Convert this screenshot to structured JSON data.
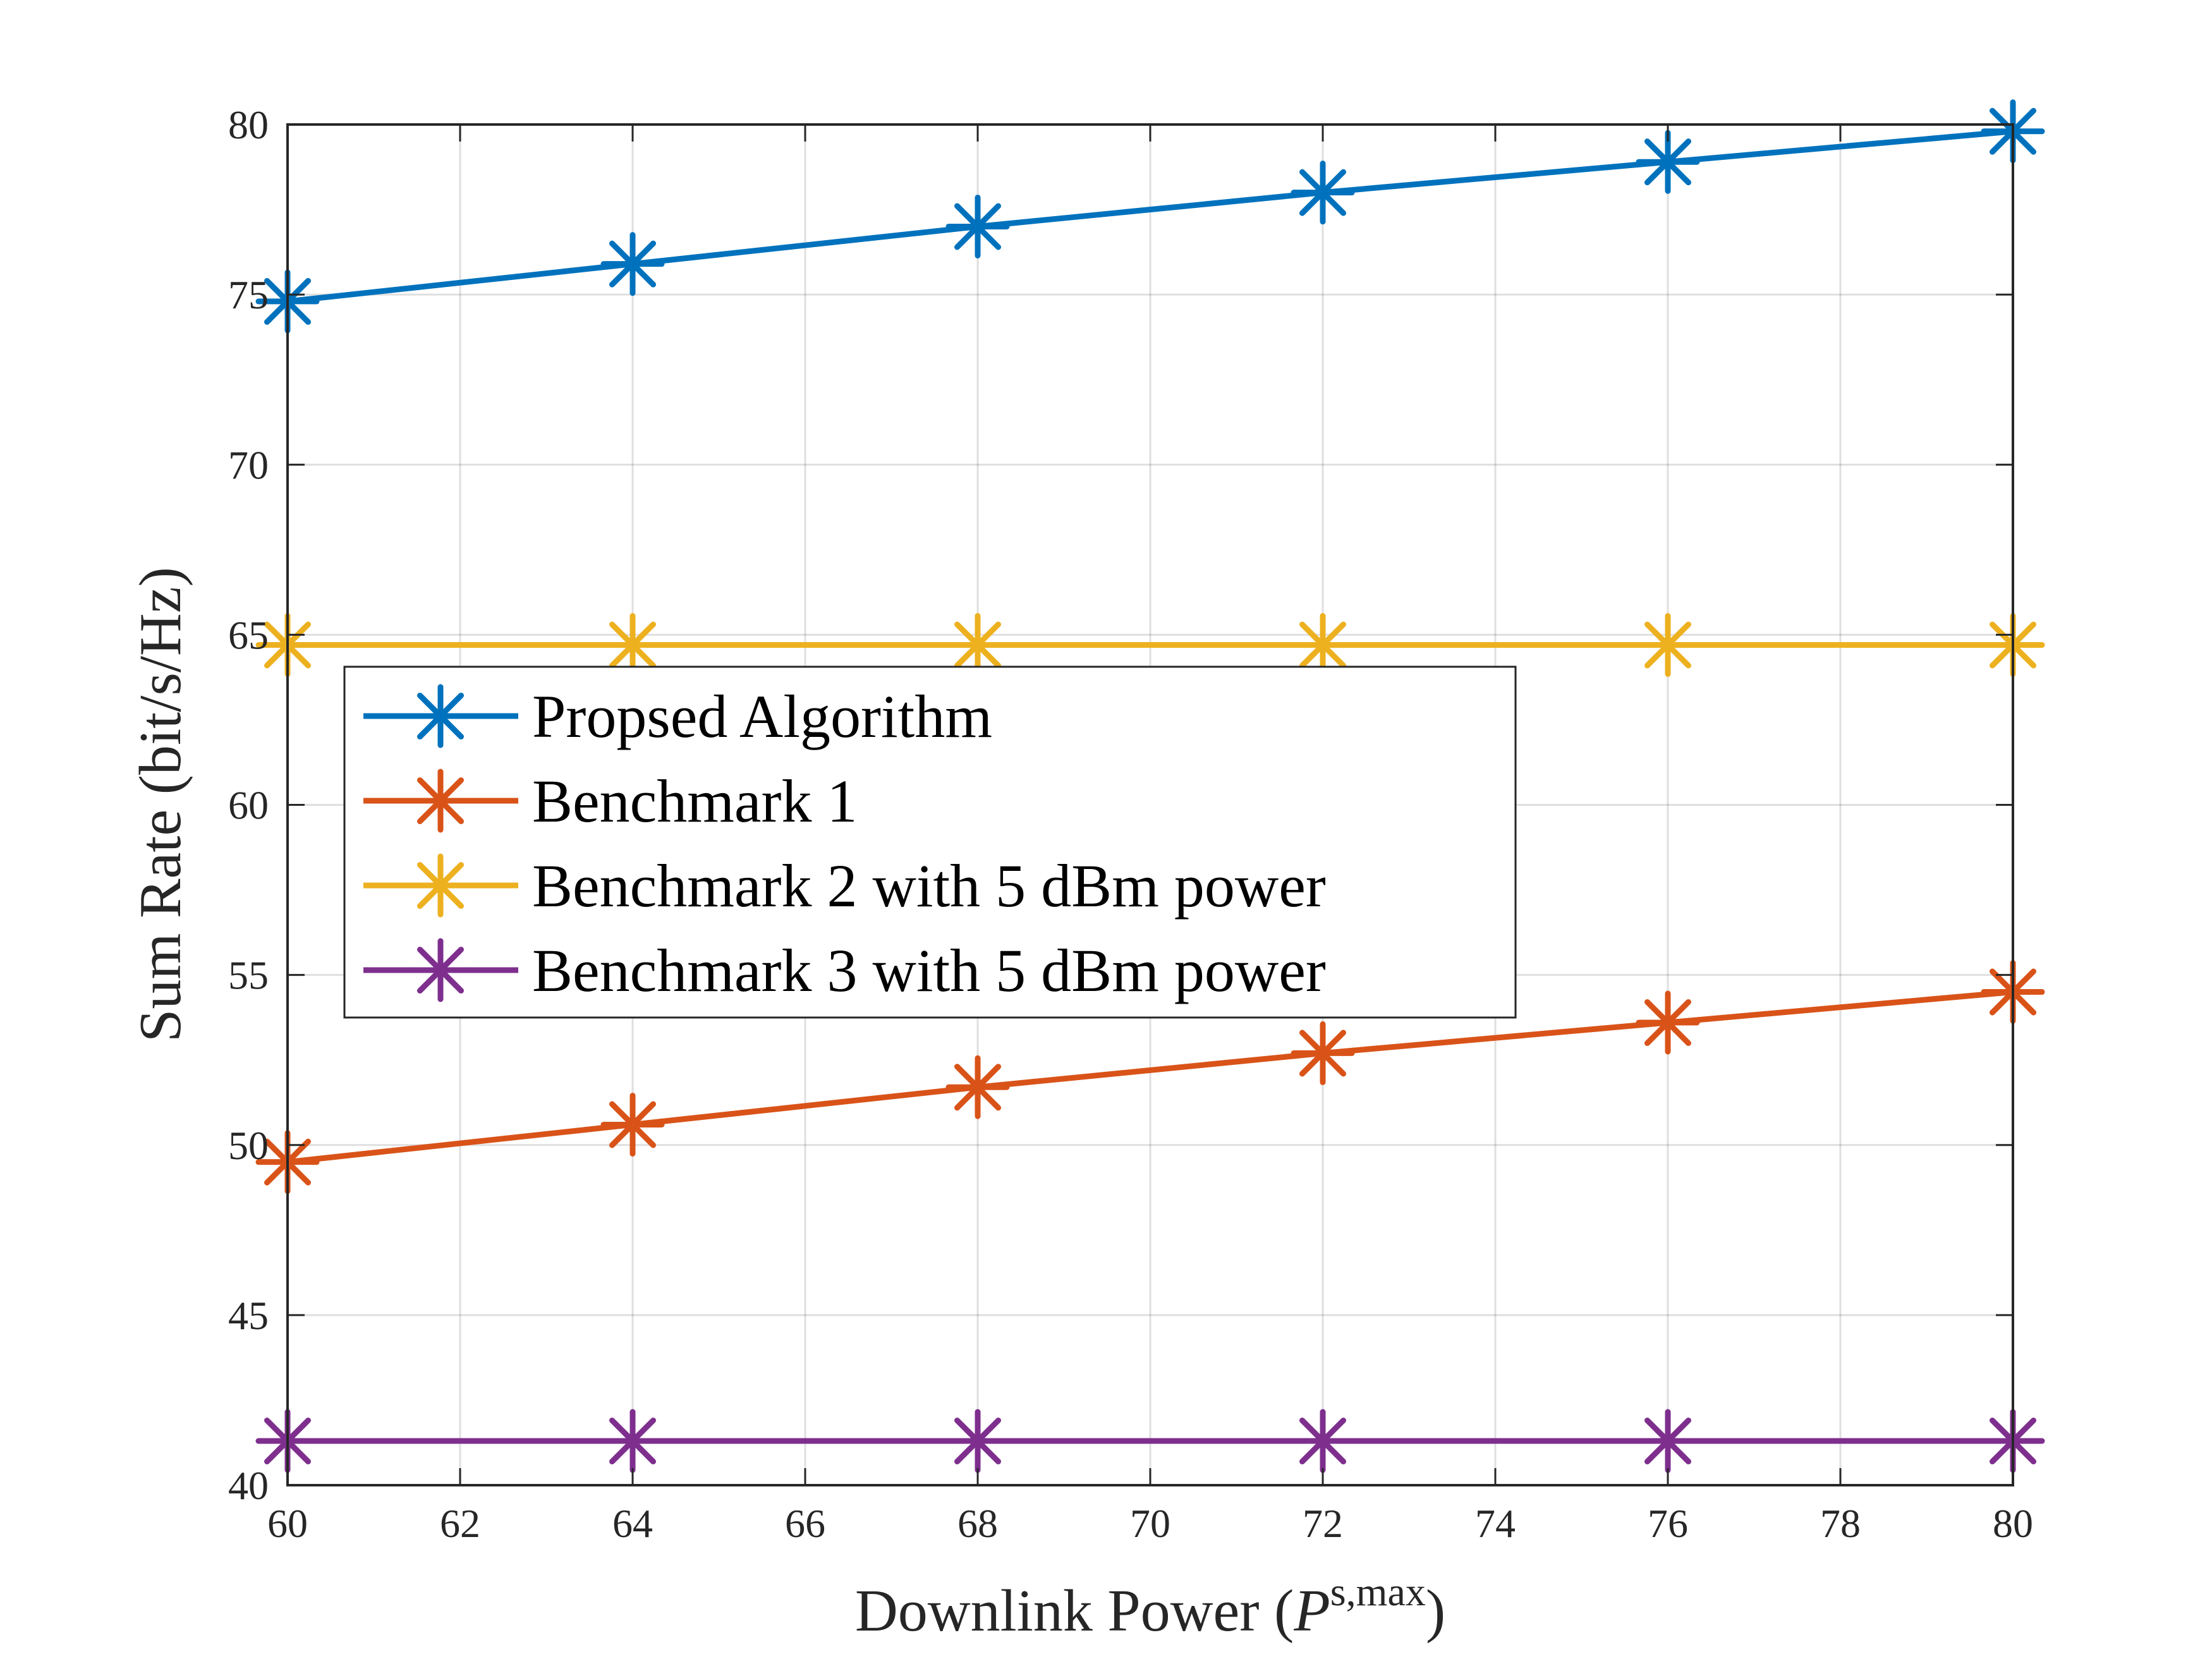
{
  "chart_data": {
    "type": "line",
    "xlabel": "Downlink Power (",
    "xlabel_symbol": "P",
    "xlabel_sup": "s,max",
    "xlabel_close": ")",
    "ylabel": "Sum Rate (bit/s/Hz)",
    "xlim": [
      60,
      80
    ],
    "ylim": [
      40,
      80
    ],
    "xticks": [
      "60",
      "62",
      "64",
      "66",
      "68",
      "70",
      "72",
      "74",
      "76",
      "78",
      "80"
    ],
    "yticks": [
      "40",
      "45",
      "50",
      "55",
      "60",
      "65",
      "70",
      "75",
      "80"
    ],
    "grid": true,
    "legend_position": "center-left",
    "x": [
      60,
      64,
      68,
      72,
      76,
      80
    ],
    "series": [
      {
        "name": "Propsed Algorithm",
        "color": "#0072BD",
        "marker": "asterisk",
        "values": [
          74.8,
          75.9,
          77.0,
          78.0,
          78.9,
          79.8
        ]
      },
      {
        "name": "Benchmark 1",
        "color": "#D95319",
        "marker": "asterisk",
        "values": [
          49.5,
          50.6,
          51.7,
          52.7,
          53.6,
          54.5
        ]
      },
      {
        "name": "Benchmark 2 with 5 dBm power",
        "color": "#EDB120",
        "marker": "asterisk",
        "values": [
          64.7,
          64.7,
          64.7,
          64.7,
          64.7,
          64.7
        ]
      },
      {
        "name": "Benchmark 3 with 5 dBm power",
        "color": "#7E2F8E",
        "marker": "asterisk",
        "values": [
          41.3,
          41.3,
          41.3,
          41.3,
          41.3,
          41.3
        ]
      }
    ]
  }
}
